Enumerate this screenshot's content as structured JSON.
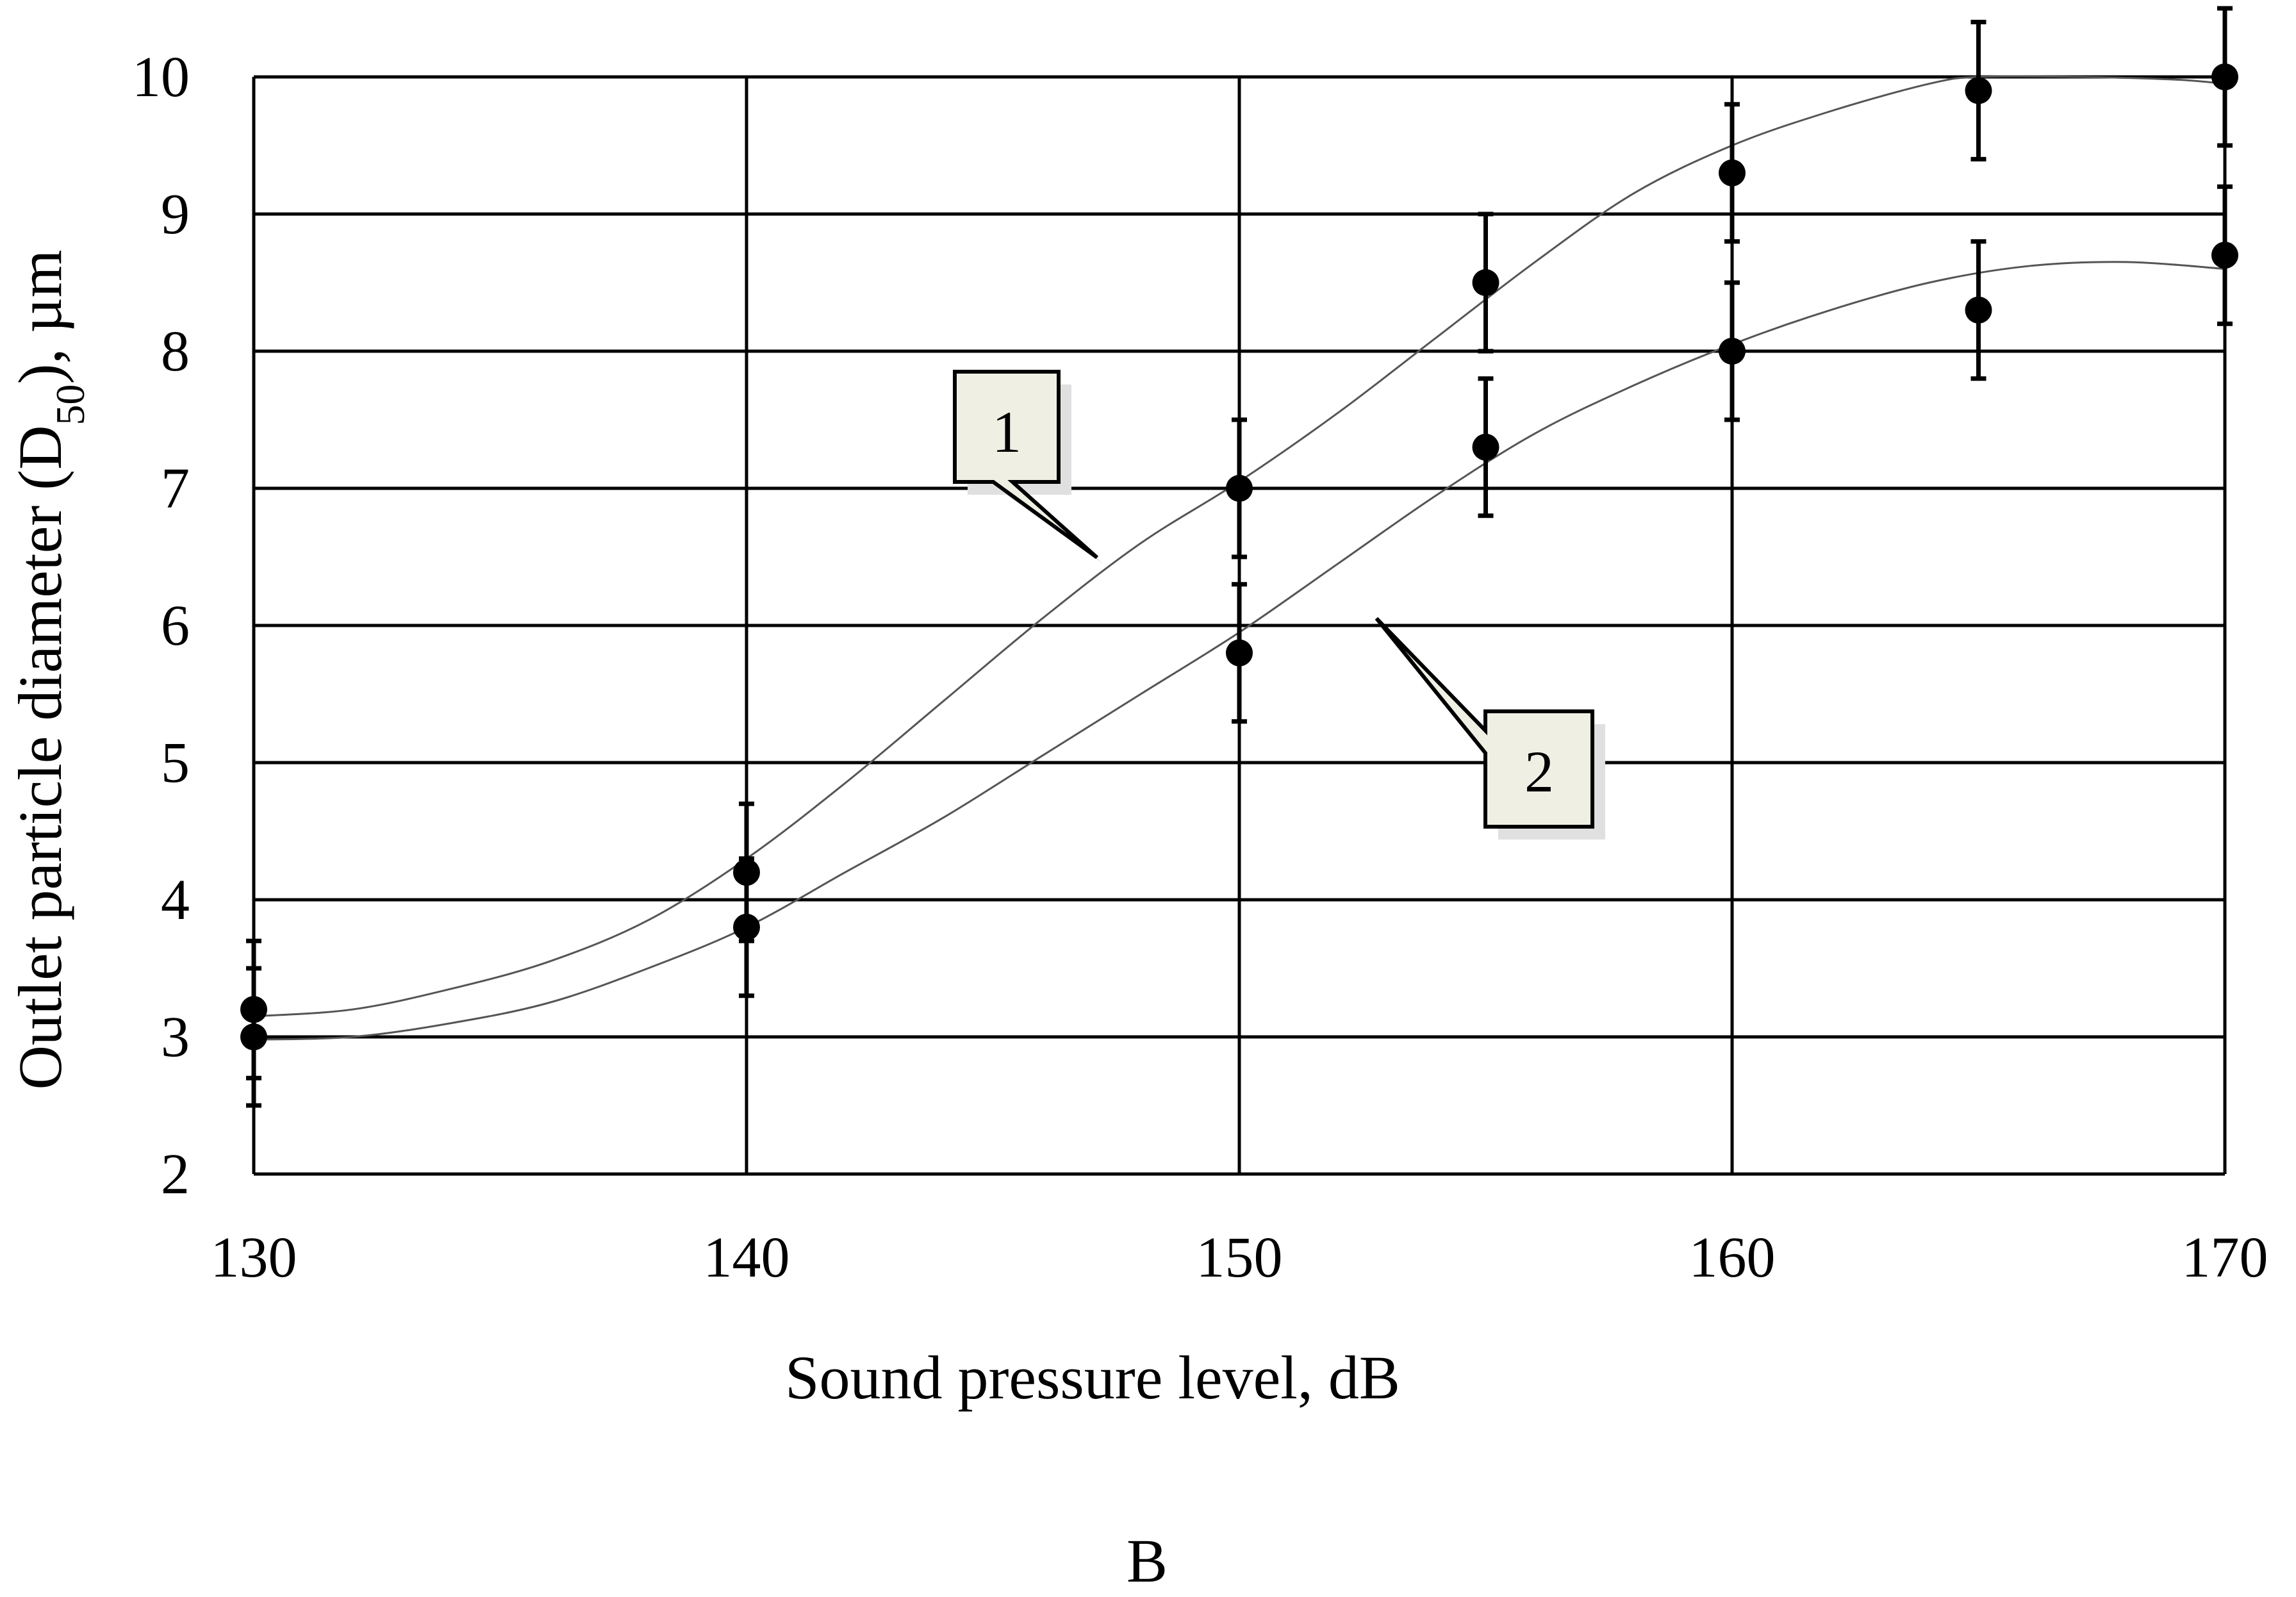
{
  "chart_data": {
    "type": "scatter",
    "title": "",
    "xlabel": "Sound pressure level, dB",
    "ylabel_parts": {
      "prefix": "Outlet particle diameter (D",
      "subscript": "50",
      "suffix": "), µm"
    },
    "xlim": [
      130,
      170
    ],
    "ylim": [
      2,
      10
    ],
    "x_ticks": [
      130,
      140,
      150,
      160,
      170
    ],
    "y_ticks": [
      2,
      3,
      4,
      5,
      6,
      7,
      8,
      9,
      10
    ],
    "grid": true,
    "panel_label": "B",
    "series": [
      {
        "callout": "1",
        "x": [
          130,
          140,
          150,
          155,
          160,
          165,
          170
        ],
        "y": [
          3.2,
          4.2,
          7.0,
          8.5,
          9.3,
          9.9,
          10.0
        ],
        "err": [
          0.5,
          0.5,
          0.5,
          0.5,
          0.5,
          0.5,
          0.5
        ],
        "curve": [
          [
            130,
            3.15
          ],
          [
            132,
            3.2
          ],
          [
            134,
            3.35
          ],
          [
            136,
            3.55
          ],
          [
            138,
            3.85
          ],
          [
            140,
            4.3
          ],
          [
            142,
            4.85
          ],
          [
            144,
            5.45
          ],
          [
            146,
            6.05
          ],
          [
            148,
            6.6
          ],
          [
            150,
            7.05
          ],
          [
            152,
            7.55
          ],
          [
            154,
            8.1
          ],
          [
            156,
            8.65
          ],
          [
            158,
            9.15
          ],
          [
            160,
            9.5
          ],
          [
            162,
            9.75
          ],
          [
            164,
            9.95
          ],
          [
            165,
            10.0
          ],
          [
            167,
            10.0
          ],
          [
            169,
            9.98
          ],
          [
            170,
            9.95
          ]
        ]
      },
      {
        "callout": "2",
        "x": [
          130,
          140,
          150,
          155,
          160,
          165,
          170
        ],
        "y": [
          3.0,
          3.8,
          5.8,
          7.3,
          8.0,
          8.3,
          8.7
        ],
        "err": [
          0.5,
          0.5,
          0.5,
          0.5,
          0.5,
          0.5,
          0.5
        ],
        "curve": [
          [
            130,
            2.98
          ],
          [
            132,
            3.0
          ],
          [
            134,
            3.1
          ],
          [
            136,
            3.25
          ],
          [
            138,
            3.5
          ],
          [
            140,
            3.8
          ],
          [
            142,
            4.2
          ],
          [
            144,
            4.6
          ],
          [
            146,
            5.05
          ],
          [
            148,
            5.5
          ],
          [
            150,
            5.95
          ],
          [
            152,
            6.45
          ],
          [
            154,
            6.95
          ],
          [
            156,
            7.4
          ],
          [
            158,
            7.75
          ],
          [
            160,
            8.05
          ],
          [
            162,
            8.3
          ],
          [
            164,
            8.5
          ],
          [
            166,
            8.62
          ],
          [
            168,
            8.65
          ],
          [
            170,
            8.6
          ]
        ]
      }
    ]
  }
}
